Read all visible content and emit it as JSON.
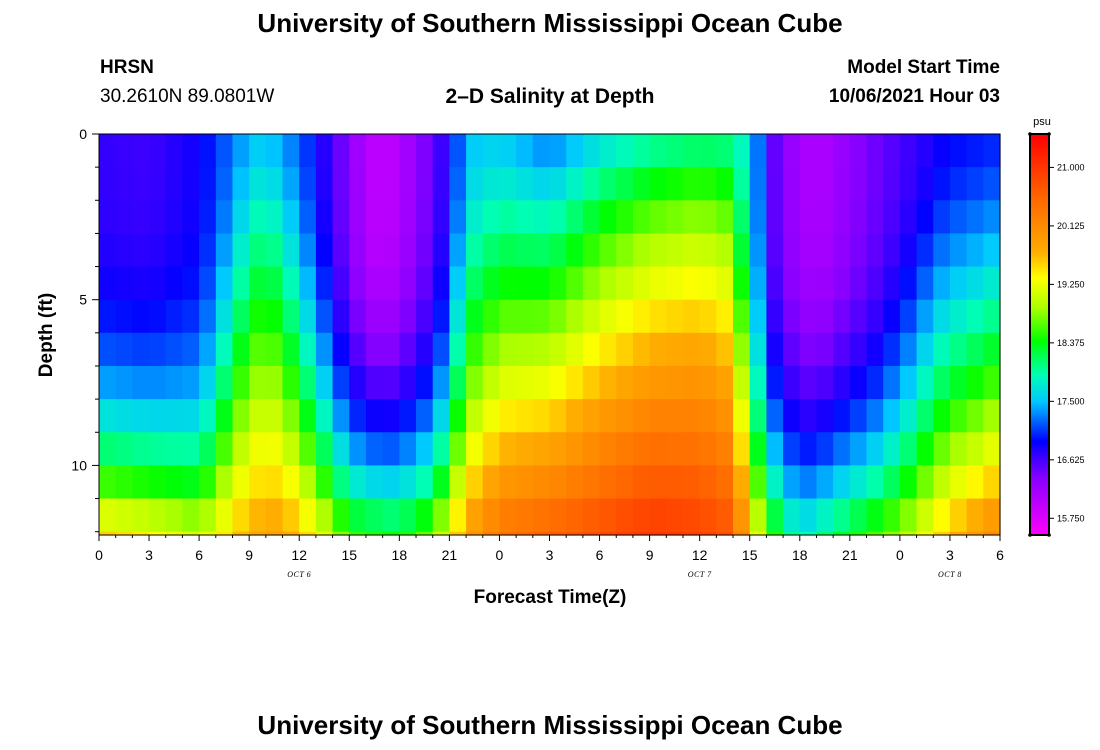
{
  "page": {
    "title_top": "University of Southern Mississippi Ocean Cube",
    "title_bottom": "University of Southern Mississippi Ocean Cube",
    "station": "HRSN",
    "coordinates": "30.2610N  89.0801W",
    "model_start_label": "Model Start Time",
    "model_start_value": "10/06/2021 Hour 03"
  },
  "chart_data": {
    "type": "heatmap",
    "title": "2–D Salinity at Depth",
    "xlabel": "Forecast Time(Z)",
    "ylabel": "Depth (ft)",
    "x_tick_labels": [
      "0",
      "3",
      "6",
      "9",
      "12",
      "15",
      "18",
      "21",
      "0",
      "3",
      "6",
      "9",
      "12",
      "15",
      "18",
      "21",
      "0",
      "3",
      "6"
    ],
    "y_tick_labels": [
      "0",
      "5",
      "10"
    ],
    "y_tick_values": [
      0,
      5,
      10
    ],
    "x_range_hours": [
      0,
      54
    ],
    "y_range_ft": [
      0,
      12.1
    ],
    "date_labels": [
      {
        "text": "OCT 6",
        "hour": 12
      },
      {
        "text": "OCT 7",
        "hour": 36
      },
      {
        "text": "OCT 8",
        "hour": 51
      }
    ],
    "colorbar": {
      "unit": "psu",
      "min": 15.5,
      "max": 21.5,
      "tick_labels": [
        "21.000",
        "20.125",
        "19.250",
        "18.375",
        "17.500",
        "16.625",
        "15.750"
      ],
      "tick_values": [
        21.0,
        20.125,
        19.25,
        18.375,
        17.5,
        16.625,
        15.75
      ],
      "stops": [
        {
          "v": 15.5,
          "color": "#ff00ff"
        },
        {
          "v": 16.35,
          "color": "#8800ff"
        },
        {
          "v": 16.9,
          "color": "#0000ff"
        },
        {
          "v": 17.5,
          "color": "#00c8ff"
        },
        {
          "v": 17.9,
          "color": "#00ffb4"
        },
        {
          "v": 18.4,
          "color": "#00ff00"
        },
        {
          "v": 18.9,
          "color": "#aaff00"
        },
        {
          "v": 19.35,
          "color": "#ffff00"
        },
        {
          "v": 19.75,
          "color": "#ffaa00"
        },
        {
          "v": 20.5,
          "color": "#ff6a00"
        },
        {
          "v": 21.5,
          "color": "#ff0000"
        }
      ]
    },
    "grid": {
      "hour_step": 1,
      "depth_step_ft": 1.0,
      "model": {
        "surface": [
          [
            0,
            16.7
          ],
          [
            3,
            16.65
          ],
          [
            6,
            16.85
          ],
          [
            9,
            17.45
          ],
          [
            10,
            17.5
          ],
          [
            12,
            17.2
          ],
          [
            14,
            16.6
          ],
          [
            16,
            16.05
          ],
          [
            17,
            15.9
          ],
          [
            19,
            16.25
          ],
          [
            21,
            16.8
          ],
          [
            22,
            17.5
          ],
          [
            24,
            17.55
          ],
          [
            27,
            17.2
          ],
          [
            30,
            17.55
          ],
          [
            33,
            17.75
          ],
          [
            36,
            17.8
          ],
          [
            38,
            17.85
          ],
          [
            39,
            17.8
          ],
          [
            40,
            16.7
          ],
          [
            41,
            16.3
          ],
          [
            43,
            16.05
          ],
          [
            45,
            16.3
          ],
          [
            48,
            16.6
          ],
          [
            51,
            16.9
          ],
          [
            54,
            17.0
          ]
        ],
        "bottom": [
          [
            0,
            19.6
          ],
          [
            3,
            19.4
          ],
          [
            6,
            19.1
          ],
          [
            9,
            19.8
          ],
          [
            11,
            19.9
          ],
          [
            13,
            19.4
          ],
          [
            15,
            18.6
          ],
          [
            18,
            18.4
          ],
          [
            20,
            18.8
          ],
          [
            22,
            19.9
          ],
          [
            24,
            20.4
          ],
          [
            27,
            20.6
          ],
          [
            30,
            20.8
          ],
          [
            33,
            21.0
          ],
          [
            36,
            20.9
          ],
          [
            38,
            20.7
          ],
          [
            39,
            19.6
          ],
          [
            40,
            18.8
          ],
          [
            41,
            18.2
          ],
          [
            42,
            17.8
          ],
          [
            45,
            18.4
          ],
          [
            48,
            18.9
          ],
          [
            51,
            19.7
          ],
          [
            54,
            20.2
          ]
        ],
        "exponent": [
          [
            0,
            3.0
          ],
          [
            6,
            3.0
          ],
          [
            8,
            1.5
          ],
          [
            10,
            1.0
          ],
          [
            12,
            1.6
          ],
          [
            15,
            3.0
          ],
          [
            20,
            3.0
          ],
          [
            22,
            1.5
          ],
          [
            24,
            1.2
          ],
          [
            30,
            0.9
          ],
          [
            36,
            0.7
          ],
          [
            38,
            0.8
          ],
          [
            40,
            3.0
          ],
          [
            46,
            3.0
          ],
          [
            50,
            1.6
          ],
          [
            54,
            1.4
          ]
        ]
      }
    }
  }
}
